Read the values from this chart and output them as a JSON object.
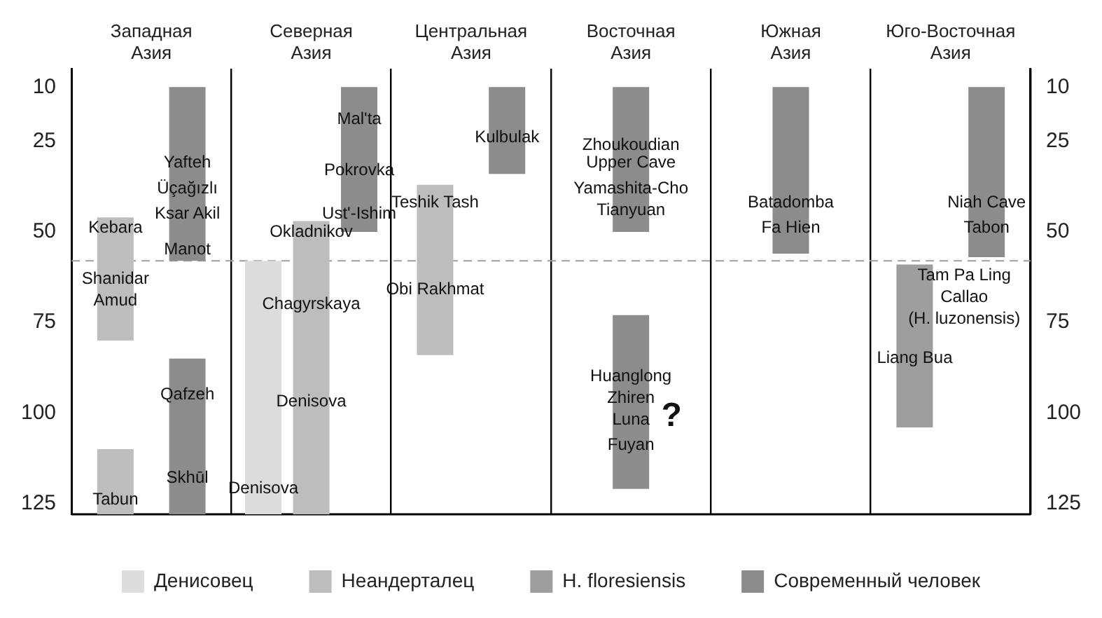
{
  "chart_data": {
    "type": "bar",
    "categories": [
      "Западная Азия",
      "Северная Азия",
      "Центральная Азия",
      "Восточная Азия",
      "Южная Азия",
      "Юго-Восточная Азия"
    ],
    "series": [
      {
        "name": "Денисовец",
        "color": "#dcdcdc",
        "base": [
          null,
          58,
          null,
          null,
          null,
          null
        ],
        "values": [
          null,
          70,
          null,
          null,
          null,
          null
        ]
      },
      {
        "name": "Неандерталец",
        "color": "#bdbdbd",
        "base": [
          46,
          47,
          37,
          null,
          null,
          null
        ],
        "values": [
          34,
          81,
          47,
          null,
          null,
          null
        ]
      },
      {
        "color": "#bdbdbd",
        "base": [
          110,
          null,
          null,
          null,
          null,
          null
        ],
        "values": [
          18,
          null,
          null,
          null,
          null,
          null
        ]
      },
      {
        "name": "H. floresiensis",
        "color": "#9e9e9e",
        "base": [
          null,
          null,
          null,
          null,
          null,
          59
        ],
        "values": [
          null,
          null,
          null,
          null,
          null,
          45
        ]
      },
      {
        "name": "Современный человек",
        "color": "#8c8c8c",
        "base": [
          10,
          10,
          10,
          10,
          10,
          10
        ],
        "values": [
          48,
          40,
          24,
          40,
          46,
          47
        ]
      },
      {
        "color": "#8c8c8c",
        "base": [
          85,
          null,
          null,
          73,
          null,
          null
        ],
        "values": [
          43,
          null,
          null,
          48,
          null,
          null
        ]
      }
    ],
    "ylim": [
      128,
      5
    ],
    "yticks": [
      10,
      25,
      50,
      75,
      100,
      125
    ],
    "y2lim": [
      128,
      5
    ],
    "y2ticks": [
      10,
      25,
      50,
      75,
      100,
      125
    ],
    "grid": "x",
    "legend": "bottom",
    "ref_lines": [
      {
        "axis": "y",
        "value": 58,
        "color": "#9e9e9e",
        "line_style": "dashed"
      }
    ],
    "annotations": [
      "Kebara",
      "Shanidar",
      "Amud",
      "Tabun",
      "Yafteh",
      "Üçağızlı",
      "Ksar Akil",
      "Manot",
      "Qafzeh",
      "Skhūl",
      "Mal'ta",
      "Pokrovka",
      "Ust'-Ishim",
      "Okladnikov",
      "Chagyrskaya",
      "Denisova",
      "Denisova",
      "Kulbulak",
      "Teshik Tash",
      "Obi Rakhmat",
      "Zhoukoudian",
      "Upper Cave",
      "Yamashita-Cho",
      "Tianyuan",
      "Huanglong",
      "Zhiren",
      "Luna",
      "Fuyan",
      "?",
      "Batadomba",
      "Fa Hien",
      "Niah Cave",
      "Tabon",
      "Tam Pa Ling",
      "Callao",
      "(H. luzonensis)",
      "Liang Bua"
    ]
  }
}
